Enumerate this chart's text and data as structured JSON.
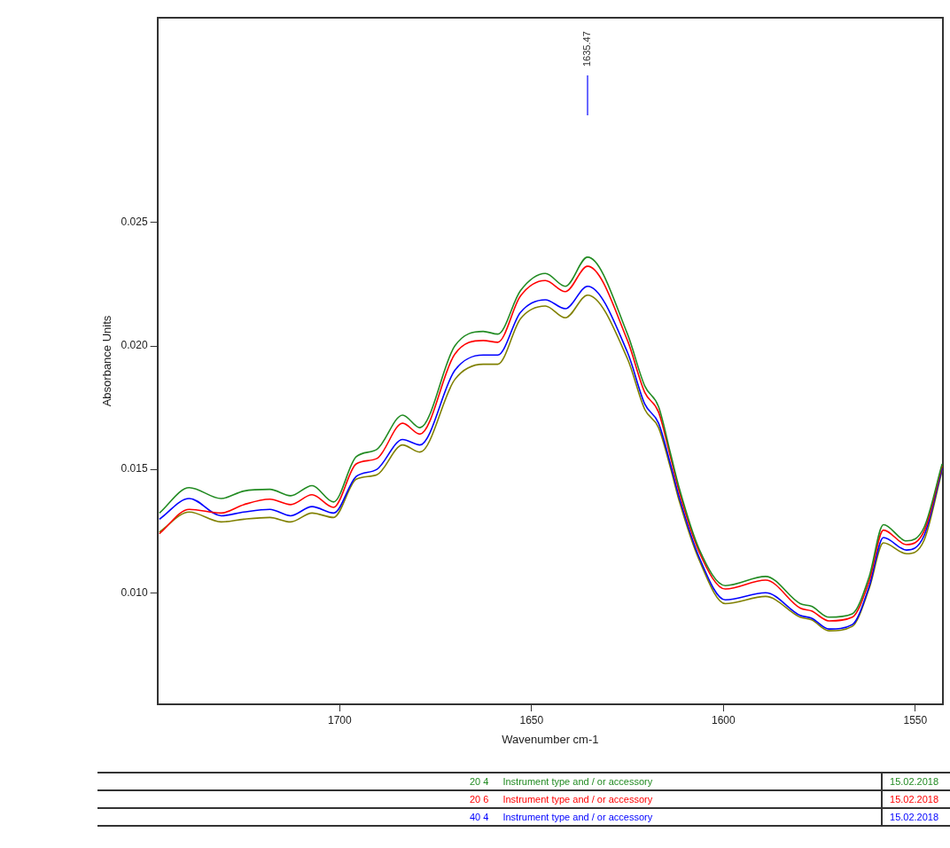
{
  "chart_data": {
    "type": "line",
    "xlabel": "Wavenumber cm-1",
    "ylabel": "Absorbance Units",
    "x": [
      1747,
      1739.2,
      1730.9,
      1725,
      1718.2,
      1712.8,
      1707.2,
      1701.6,
      1695.7,
      1690.3,
      1683.6,
      1679.1,
      1670,
      1662.6,
      1658.8,
      1652.9,
      1646.4,
      1641.2,
      1635.4,
      1625,
      1620.5,
      1616.9,
      1613.7,
      1611.5,
      1606.3,
      1599.5,
      1589,
      1580,
      1577,
      1572.5,
      1566.4,
      1562,
      1558.3,
      1552.3,
      1547.7,
      1543
    ],
    "series": [
      {
        "name": "20 4",
        "color": "#228b22",
        "values": [
          0.01323,
          0.01426,
          0.01382,
          0.01412,
          0.01419,
          0.01393,
          0.01434,
          0.01368,
          0.01551,
          0.01581,
          0.0172,
          0.01669,
          0.02,
          0.02059,
          0.02048,
          0.02224,
          0.02294,
          0.02242,
          0.0236,
          0.02048,
          0.01838,
          0.01754,
          0.01559,
          0.01423,
          0.01176,
          0.01029,
          0.01066,
          0.00956,
          0.00945,
          0.00901,
          0.00915,
          0.01066,
          0.01276,
          0.0121,
          0.01265,
          0.01522
        ]
      },
      {
        "name": "20 6",
        "color": "#ff0000",
        "values": [
          0.01239,
          0.01338,
          0.01323,
          0.01357,
          0.01379,
          0.01357,
          0.01397,
          0.01346,
          0.01522,
          0.01544,
          0.01687,
          0.01643,
          0.01967,
          0.02022,
          0.02015,
          0.02202,
          0.02265,
          0.0222,
          0.02323,
          0.02022,
          0.01812,
          0.01732,
          0.01544,
          0.01408,
          0.01165,
          0.01015,
          0.01051,
          0.00938,
          0.00926,
          0.00886,
          0.00901,
          0.01048,
          0.01254,
          0.01195,
          0.0125,
          0.01515
        ]
      },
      {
        "name": "40 4",
        "color": "#0000ff",
        "values": [
          0.01298,
          0.01382,
          0.01312,
          0.01327,
          0.01338,
          0.01312,
          0.01349,
          0.01323,
          0.01471,
          0.015,
          0.01621,
          0.01599,
          0.01901,
          0.01963,
          0.01963,
          0.02136,
          0.02187,
          0.02151,
          0.02242,
          0.01974,
          0.01765,
          0.01687,
          0.01515,
          0.01386,
          0.01143,
          0.00971,
          0.01,
          0.00908,
          0.00897,
          0.00853,
          0.00871,
          0.01026,
          0.01224,
          0.01173,
          0.01232,
          0.01504
        ]
      },
      {
        "color": "#808000",
        "values": [
          0.01246,
          0.01327,
          0.01287,
          0.01298,
          0.01305,
          0.01287,
          0.01323,
          0.01305,
          0.0146,
          0.01478,
          0.01599,
          0.0157,
          0.01864,
          0.01926,
          0.01926,
          0.0211,
          0.02162,
          0.02114,
          0.02206,
          0.01948,
          0.01743,
          0.01669,
          0.015,
          0.01371,
          0.01132,
          0.00956,
          0.00985,
          0.00901,
          0.0089,
          0.00846,
          0.00864,
          0.01018,
          0.01202,
          0.01158,
          0.01213,
          0.01496
        ]
      }
    ],
    "xlim": [
      1747.5,
      1542.8
    ],
    "xticks": [
      1700,
      1650,
      1600,
      1550
    ],
    "ylim": [
      0.00548,
      0.0333
    ],
    "yticks": [
      {
        "value": 0.01,
        "label": "0.010"
      },
      {
        "value": 0.015,
        "label": "0.015"
      },
      {
        "value": 0.02,
        "label": "0.020"
      },
      {
        "value": 0.025,
        "label": "0.025"
      }
    ],
    "grid": false,
    "legend": "bottom",
    "annotations": [
      "1635.47",
      "Instrument type and / or accessory",
      "15.02.2018",
      "Instrument type and / or accessory",
      "15.02.2018",
      "Instrument type and / or accessory",
      "15.02.2018"
    ]
  }
}
